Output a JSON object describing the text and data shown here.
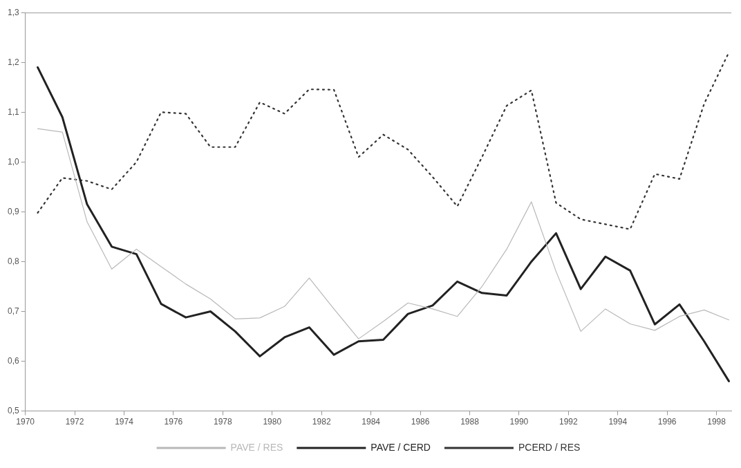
{
  "chart_data": {
    "type": "line",
    "x": [
      1970.5,
      1971.5,
      1972.5,
      1973.5,
      1974.5,
      1975.5,
      1976.5,
      1977.5,
      1978.5,
      1979.5,
      1980.5,
      1981.5,
      1982.5,
      1983.5,
      1984.5,
      1985.5,
      1986.5,
      1987.5,
      1988.5,
      1989.5,
      1990.5,
      1991.5,
      1992.5,
      1993.5,
      1994.5,
      1995.5,
      1996.5,
      1997.5,
      1998.5
    ],
    "series": [
      {
        "name": "PAVE / RES",
        "color": "#b8b8b8",
        "line_style": "solid",
        "values": [
          1.067,
          1.06,
          0.88,
          0.785,
          0.825,
          0.79,
          0.755,
          0.725,
          0.685,
          0.687,
          0.71,
          0.767,
          0.705,
          0.645,
          0.68,
          0.717,
          0.705,
          0.69,
          0.75,
          0.825,
          0.92,
          0.78,
          0.66,
          0.705,
          0.675,
          0.662,
          0.69,
          0.703,
          0.683
        ]
      },
      {
        "name": "PAVE / CERD",
        "color": "#222222",
        "line_style": "solid",
        "values": [
          1.19,
          1.09,
          0.915,
          0.83,
          0.815,
          0.715,
          0.688,
          0.7,
          0.66,
          0.61,
          0.648,
          0.668,
          0.613,
          0.64,
          0.643,
          0.695,
          0.712,
          0.76,
          0.737,
          0.732,
          0.8,
          0.857,
          0.745,
          0.81,
          0.782,
          0.674,
          0.714,
          0.64,
          0.56
        ]
      },
      {
        "name": "PCERD / RES",
        "color": "#333333",
        "line_style": "dotted",
        "values": [
          0.898,
          0.968,
          0.962,
          0.945,
          1.0,
          1.1,
          1.097,
          1.03,
          1.03,
          1.12,
          1.097,
          1.146,
          1.145,
          1.01,
          1.055,
          1.025,
          0.97,
          0.911,
          1.01,
          1.113,
          1.144,
          0.918,
          0.885,
          0.875,
          0.865,
          0.976,
          0.966,
          1.117,
          1.22
        ]
      }
    ],
    "xlim": [
      1970,
      1998.6
    ],
    "xticks": [
      1970,
      1972,
      1974,
      1976,
      1978,
      1980,
      1982,
      1984,
      1986,
      1988,
      1990,
      1992,
      1994,
      1996,
      1998
    ],
    "ylim": [
      0.5,
      1.3
    ],
    "yticks": [
      {
        "value": 0.5,
        "label": "0,5"
      },
      {
        "value": 0.6,
        "label": "0,6"
      },
      {
        "value": 0.7,
        "label": "0,7"
      },
      {
        "value": 0.8,
        "label": "0,8"
      },
      {
        "value": 0.9,
        "label": "0,9"
      },
      {
        "value": 1.0,
        "label": "1,0"
      },
      {
        "value": 1.1,
        "label": "1,1"
      },
      {
        "value": 1.2,
        "label": "1,2"
      },
      {
        "value": 1.3,
        "label": "1,3"
      }
    ],
    "grid": false,
    "legend": "bottom",
    "marker": "none"
  }
}
